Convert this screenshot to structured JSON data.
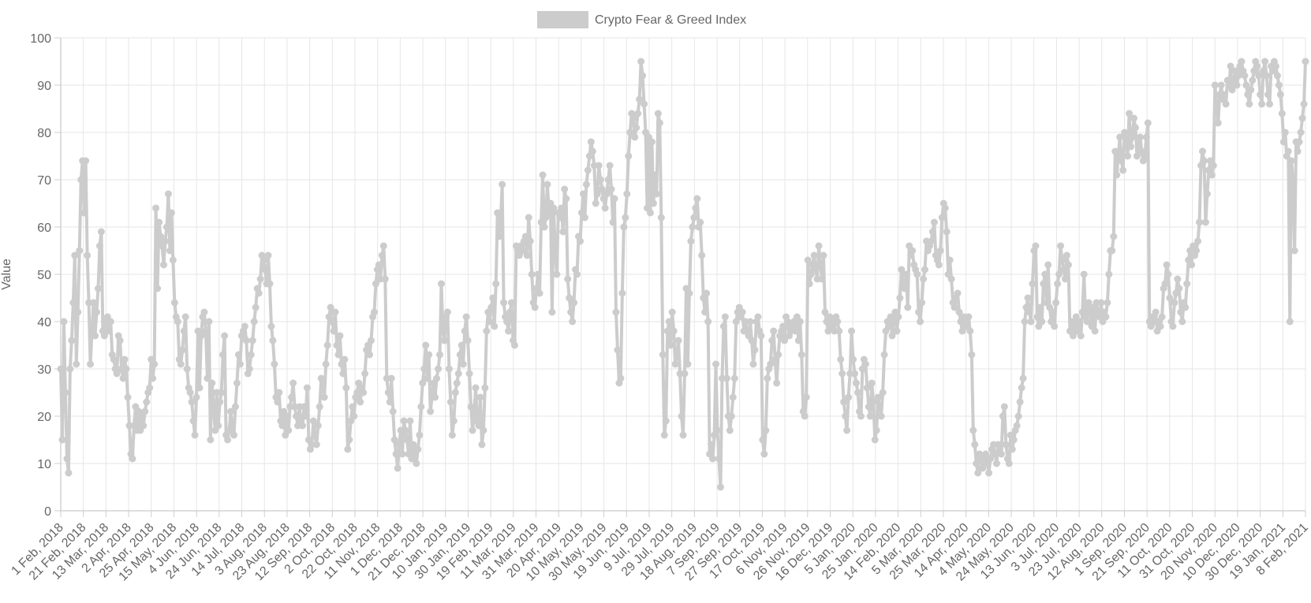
{
  "chart_data": {
    "type": "line",
    "ylabel": "Value",
    "ylim": [
      0,
      100
    ],
    "y_ticks": [
      0,
      10,
      20,
      30,
      40,
      50,
      60,
      70,
      80,
      90,
      100
    ],
    "grid": true,
    "legend_position": "top-center",
    "x_tick_labels": [
      "1 Feb, 2018",
      "21 Feb, 2018",
      "13 Mar, 2018",
      "2 Apr, 2018",
      "25 Apr, 2018",
      "15 May, 2018",
      "4 Jun, 2018",
      "24 Jun, 2018",
      "14 Jul, 2018",
      "3 Aug, 2018",
      "23 Aug, 2018",
      "12 Sep, 2018",
      "2 Oct, 2018",
      "22 Oct, 2018",
      "11 Nov, 2018",
      "1 Dec, 2018",
      "21 Dec, 2018",
      "10 Jan, 2019",
      "30 Jan, 2019",
      "19 Feb, 2019",
      "11 Mar, 2019",
      "31 Mar, 2019",
      "20 Apr, 2019",
      "10 May, 2019",
      "30 May, 2019",
      "19 Jun, 2019",
      "9 Jul, 2019",
      "29 Jul, 2019",
      "18 Aug, 2019",
      "7 Sep, 2019",
      "27 Sep, 2019",
      "17 Oct, 2019",
      "6 Nov, 2019",
      "26 Nov, 2019",
      "16 Dec, 2019",
      "5 Jan, 2020",
      "25 Jan, 2020",
      "14 Feb, 2020",
      "5 Mar, 2020",
      "25 Mar, 2020",
      "14 Apr, 2020",
      "4 May, 2020",
      "24 May, 2020",
      "13 Jun, 2020",
      "3 Jul, 2020",
      "23 Jul, 2020",
      "12 Aug, 2020",
      "1 Sep, 2020",
      "21 Sep, 2020",
      "11 Oct, 2020",
      "31 Oct, 2020",
      "20 Nov, 2020",
      "10 Dec, 2020",
      "30 Dec, 2020",
      "19 Jan, 2021",
      "8 Feb, 2021"
    ],
    "series": [
      {
        "name": "Crypto Fear & Greed Index",
        "color": "#cccccc",
        "values": [
          30,
          15,
          40,
          25,
          11,
          8,
          30,
          36,
          44,
          54,
          31,
          42,
          55,
          70,
          74,
          63,
          74,
          54,
          44,
          31,
          38,
          44,
          37,
          42,
          47,
          56,
          59,
          38,
          37,
          40,
          41,
          38,
          40,
          33,
          32,
          30,
          29,
          37,
          36,
          30,
          28,
          32,
          30,
          24,
          18,
          12,
          11,
          18,
          22,
          17,
          21,
          17,
          20,
          18,
          21,
          23,
          25,
          26,
          32,
          28,
          31,
          64,
          47,
          61,
          58,
          56,
          52,
          57,
          60,
          67,
          55,
          63,
          53,
          44,
          41,
          40,
          32,
          31,
          34,
          38,
          41,
          30,
          26,
          25,
          23,
          19,
          16,
          24,
          38,
          26,
          37,
          41,
          42,
          38,
          28,
          40,
          15,
          27,
          22,
          17,
          25,
          18,
          23,
          25,
          33,
          37,
          16,
          15,
          17,
          21,
          18,
          16,
          22,
          27,
          33,
          31,
          37,
          38,
          39,
          36,
          29,
          30,
          33,
          36,
          40,
          43,
          47,
          46,
          49,
          54,
          53,
          51,
          48,
          54,
          48,
          39,
          36,
          31,
          24,
          23,
          25,
          19,
          18,
          21,
          16,
          20,
          17,
          22,
          24,
          27,
          22,
          20,
          18,
          22,
          19,
          18,
          22,
          20,
          26,
          15,
          13,
          14,
          19,
          16,
          14,
          18,
          22,
          28,
          26,
          24,
          31,
          35,
          41,
          43,
          40,
          38,
          42,
          35,
          33,
          37,
          31,
          29,
          32,
          26,
          13,
          15,
          19,
          22,
          20,
          24,
          25,
          27,
          23,
          26,
          25,
          29,
          34,
          35,
          33,
          36,
          41,
          42,
          48,
          51,
          52,
          49,
          54,
          56,
          49,
          28,
          25,
          23,
          28,
          21,
          15,
          12,
          9,
          14,
          17,
          12,
          19,
          17,
          15,
          12,
          19,
          11,
          14,
          12,
          10,
          13,
          16,
          22,
          27,
          30,
          35,
          28,
          33,
          21,
          24,
          27,
          24,
          28,
          30,
          33,
          48,
          38,
          36,
          41,
          42,
          30,
          23,
          16,
          19,
          25,
          27,
          29,
          33,
          35,
          31,
          38,
          41,
          36,
          29,
          22,
          17,
          20,
          26,
          19,
          18,
          24,
          14,
          17,
          26,
          38,
          42,
          40,
          43,
          45,
          39,
          48,
          63,
          58,
          61,
          69,
          44,
          41,
          40,
          38,
          42,
          44,
          36,
          35,
          56,
          55,
          54,
          56,
          55,
          57,
          58,
          54,
          62,
          57,
          50,
          44,
          43,
          47,
          50,
          46,
          61,
          71,
          60,
          62,
          69,
          63,
          65,
          42,
          64,
          55,
          50,
          63,
          62,
          64,
          59,
          68,
          66,
          49,
          45,
          42,
          40,
          44,
          51,
          50,
          58,
          57,
          63,
          67,
          62,
          69,
          72,
          75,
          78,
          76,
          73,
          65,
          67,
          73,
          70,
          68,
          66,
          64,
          67,
          70,
          73,
          68,
          61,
          66,
          42,
          34,
          27,
          28,
          46,
          60,
          62,
          67,
          75,
          80,
          84,
          83,
          79,
          81,
          84,
          87,
          95,
          92,
          86,
          80,
          64,
          79,
          63,
          78,
          65,
          71,
          67,
          84,
          82,
          62,
          33,
          16,
          19,
          38,
          40,
          35,
          42,
          38,
          31,
          33,
          36,
          29,
          20,
          16,
          29,
          47,
          31,
          46,
          57,
          60,
          62,
          64,
          66,
          60,
          61,
          54,
          45,
          42,
          46,
          40,
          12,
          14,
          11,
          16,
          31,
          17,
          11,
          5,
          28,
          39,
          41,
          28,
          20,
          17,
          20,
          24,
          28,
          40,
          42,
          43,
          41,
          42,
          38,
          40,
          38,
          37,
          40,
          36,
          31,
          34,
          40,
          41,
          38,
          37,
          15,
          12,
          17,
          28,
          30,
          31,
          36,
          38,
          32,
          27,
          33,
          37,
          38,
          39,
          36,
          41,
          40,
          37,
          38,
          39,
          40,
          38,
          41,
          36,
          40,
          33,
          21,
          20,
          24,
          53,
          48,
          50,
          52,
          54,
          51,
          49,
          56,
          52,
          49,
          54,
          42,
          40,
          38,
          41,
          40,
          39,
          38,
          41,
          40,
          38,
          32,
          29,
          23,
          20,
          17,
          24,
          29,
          38,
          32,
          29,
          27,
          25,
          21,
          20,
          30,
          32,
          31,
          26,
          22,
          20,
          27,
          23,
          15,
          17,
          24,
          22,
          20,
          25,
          33,
          38,
          40,
          39,
          41,
          37,
          40,
          42,
          38,
          41,
          45,
          51,
          48,
          47,
          50,
          43,
          56,
          54,
          55,
          52,
          51,
          50,
          42,
          40,
          44,
          49,
          51,
          57,
          55,
          56,
          57,
          59,
          61,
          54,
          53,
          52,
          55,
          62,
          65,
          64,
          59,
          50,
          53,
          49,
          44,
          43,
          45,
          46,
          42,
          40,
          38,
          41,
          39,
          40,
          41,
          38,
          33,
          17,
          14,
          10,
          8,
          12,
          11,
          9,
          11,
          12,
          10,
          8,
          11,
          13,
          14,
          12,
          10,
          14,
          13,
          12,
          20,
          22,
          14,
          11,
          10,
          16,
          13,
          15,
          17,
          18,
          20,
          23,
          26,
          28,
          40,
          43,
          45,
          42,
          40,
          48,
          55,
          56,
          41,
          39,
          43,
          40,
          48,
          50,
          44,
          52,
          43,
          40,
          42,
          39,
          44,
          48,
          50,
          56,
          53,
          51,
          49,
          54,
          52,
          38,
          40,
          37,
          39,
          41,
          38,
          40,
          37,
          42,
          50,
          41,
          40,
          44,
          42,
          39,
          43,
          38,
          44,
          42,
          41,
          44,
          40,
          42,
          41,
          44,
          50,
          55,
          55,
          58,
          76,
          71,
          75,
          79,
          74,
          72,
          80,
          78,
          75,
          84,
          77,
          79,
          83,
          81,
          75,
          77,
          79,
          76,
          74,
          75,
          79,
          82,
          40,
          39,
          41,
          40,
          42,
          38,
          40,
          39,
          41,
          47,
          48,
          52,
          50,
          45,
          40,
          39,
          44,
          46,
          49,
          47,
          42,
          40,
          44,
          43,
          48,
          53,
          55,
          52,
          56,
          54,
          55,
          57,
          61,
          73,
          76,
          74,
          61,
          67,
          72,
          74,
          71,
          73,
          90,
          86,
          82,
          88,
          90,
          87,
          88,
          86,
          91,
          90,
          94,
          89,
          91,
          93,
          90,
          92,
          94,
          95,
          93,
          92,
          90,
          88,
          86,
          89,
          91,
          93,
          95,
          94,
          92,
          88,
          86,
          93,
          95,
          92,
          88,
          86,
          94,
          93,
          95,
          94,
          92,
          90,
          88,
          84,
          78,
          80,
          75,
          76,
          40,
          74,
          70,
          55,
          78,
          76,
          78,
          80,
          83,
          86,
          95
        ]
      }
    ]
  }
}
